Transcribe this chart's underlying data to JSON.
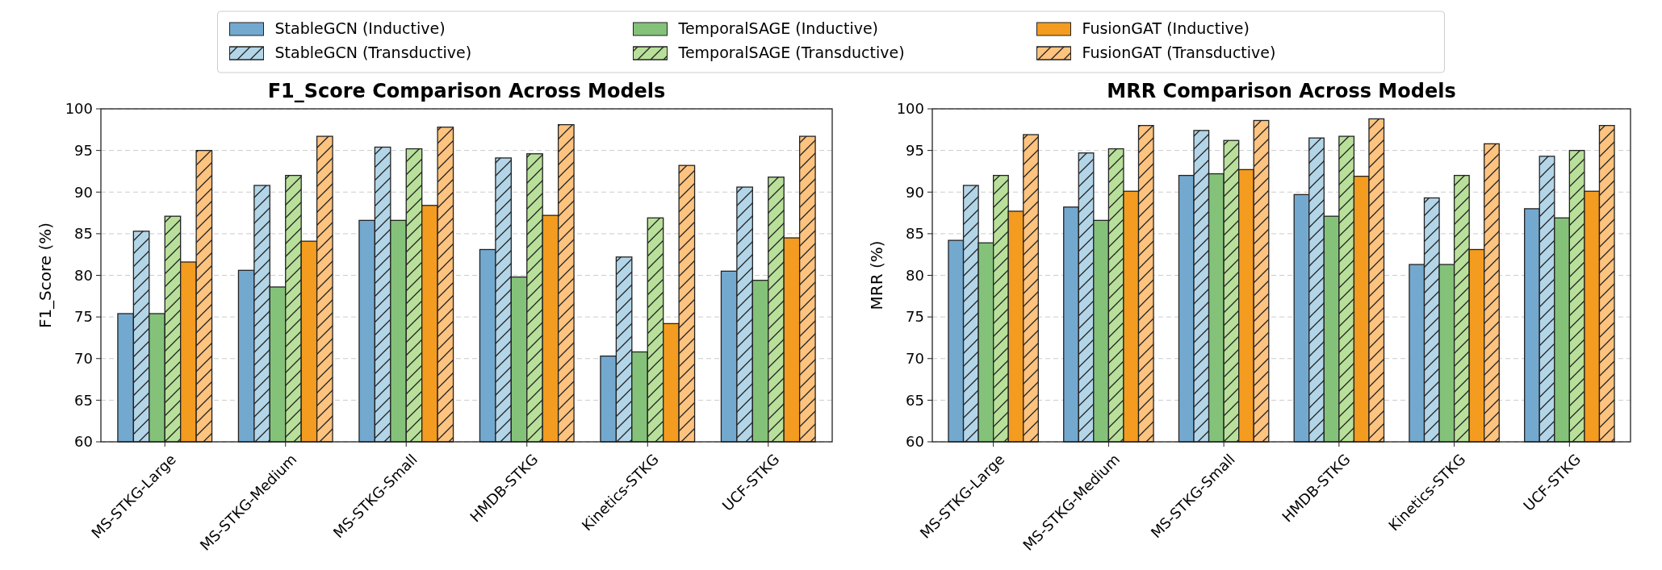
{
  "chart_data": [
    {
      "type": "bar",
      "title": "F1_Score Comparison Across Models",
      "ylabel": "F1_Score (%)",
      "categories": [
        "MS-STKG-Large",
        "MS-STKG-Medium",
        "MS-STKG-Small",
        "HMDB-STKG",
        "Kinetics-STKG",
        "UCF-STKG"
      ],
      "ylim": [
        60,
        100
      ],
      "yticks": [
        60,
        65,
        70,
        75,
        80,
        85,
        90,
        95,
        100
      ],
      "grid": "y",
      "legend": "top",
      "series": [
        {
          "name": "StableGCN (Inductive)",
          "color": "#74a9cf",
          "values": [
            75.4,
            80.6,
            86.6,
            83.1,
            70.3,
            80.5
          ]
        },
        {
          "name": "StableGCN (Transductive)",
          "color": "#b3d5e8",
          "values": [
            85.3,
            90.8,
            95.4,
            94.1,
            82.2,
            90.6
          ]
        },
        {
          "name": "TemporalSAGE (Inductive)",
          "color": "#84c27a",
          "values": [
            75.4,
            78.6,
            86.6,
            79.8,
            70.8,
            79.4
          ]
        },
        {
          "name": "TemporalSAGE (Transductive)",
          "color": "#b8e09a",
          "values": [
            87.1,
            92.0,
            95.2,
            94.6,
            86.9,
            91.8
          ]
        },
        {
          "name": "FusionGAT (Inductive)",
          "color": "#f39c1f",
          "values": [
            81.6,
            84.1,
            88.4,
            87.2,
            74.2,
            84.5
          ]
        },
        {
          "name": "FusionGAT (Transductive)",
          "color": "#fdc37f",
          "values": [
            95.0,
            96.7,
            97.8,
            98.1,
            93.2,
            96.7
          ]
        }
      ]
    },
    {
      "type": "bar",
      "title": "MRR Comparison Across Models",
      "ylabel": "MRR (%)",
      "categories": [
        "MS-STKG-Large",
        "MS-STKG-Medium",
        "MS-STKG-Small",
        "HMDB-STKG",
        "Kinetics-STKG",
        "UCF-STKG"
      ],
      "ylim": [
        60,
        100
      ],
      "yticks": [
        60,
        65,
        70,
        75,
        80,
        85,
        90,
        95,
        100
      ],
      "grid": "y",
      "series": [
        {
          "color": "#74a9cf",
          "values": [
            84.2,
            88.2,
            92.0,
            89.7,
            81.3,
            88.0
          ]
        },
        {
          "color": "#b3d5e8",
          "values": [
            90.8,
            94.7,
            97.4,
            96.5,
            89.3,
            94.3
          ]
        },
        {
          "color": "#84c27a",
          "values": [
            83.9,
            86.6,
            92.2,
            87.1,
            81.3,
            86.9
          ]
        },
        {
          "color": "#b8e09a",
          "values": [
            92.0,
            95.2,
            96.2,
            96.7,
            92.0,
            95.0
          ]
        },
        {
          "color": "#f39c1f",
          "values": [
            87.7,
            90.1,
            92.7,
            91.9,
            83.1,
            90.1
          ]
        },
        {
          "color": "#fdc37f",
          "values": [
            96.9,
            98.0,
            98.6,
            98.8,
            95.8,
            98.0
          ]
        }
      ]
    }
  ]
}
